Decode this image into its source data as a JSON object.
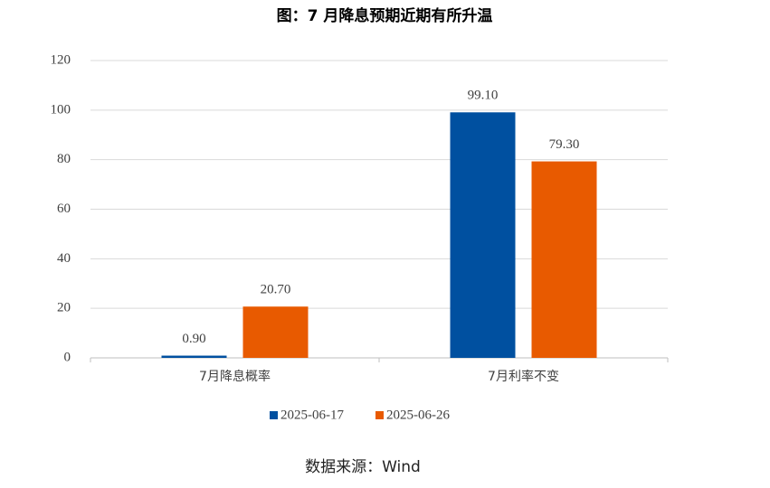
{
  "chart_data": {
    "type": "bar",
    "title": "图：7 月降息预期近期有所升温",
    "categories": [
      "7月降息概率",
      "7月利率不变"
    ],
    "series": [
      {
        "name": "2025-06-17",
        "color": "#0050a0",
        "values": [
          0.9,
          99.1
        ],
        "value_labels": [
          "0.90",
          "99.10"
        ]
      },
      {
        "name": "2025-06-26",
        "color": "#e85a00",
        "values": [
          20.7,
          79.3
        ],
        "value_labels": [
          "20.70",
          "79.30"
        ]
      }
    ],
    "ylim": [
      0,
      120
    ],
    "yticks": [
      0,
      20,
      40,
      60,
      80,
      100,
      120
    ],
    "grid": true,
    "legend": "bottom",
    "note": "数据来源：Wind"
  }
}
